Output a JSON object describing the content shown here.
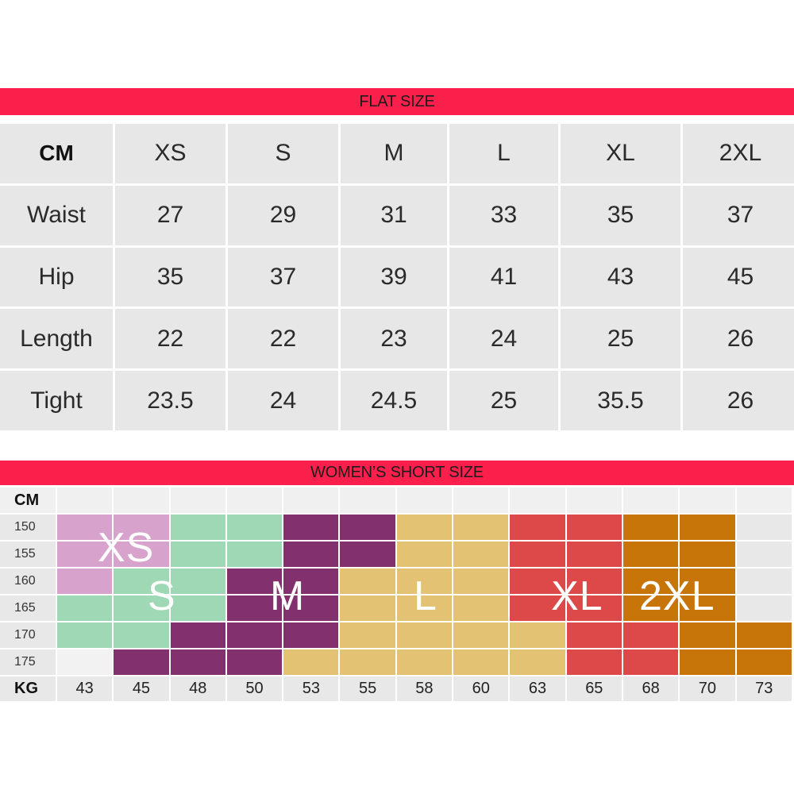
{
  "flat_size": {
    "title": "FLAT SIZE",
    "corner": "CM",
    "headers": [
      "XS",
      "S",
      "M",
      "L",
      "XL",
      "2XL"
    ],
    "rows": [
      {
        "label": "Waist",
        "values": [
          "27",
          "29",
          "31",
          "33",
          "35",
          "37"
        ]
      },
      {
        "label": "Hip",
        "values": [
          "35",
          "37",
          "39",
          "41",
          "43",
          "45"
        ]
      },
      {
        "label": "Length",
        "values": [
          "22",
          "22",
          "23",
          "24",
          "25",
          "26"
        ]
      },
      {
        "label": "Tight",
        "values": [
          "23.5",
          "24",
          "24.5",
          "25",
          "35.5",
          "26"
        ]
      }
    ]
  },
  "short_size": {
    "title": "WOMEN’S SHORT SIZE",
    "cm_label": "CM",
    "kg_label": "KG",
    "heights": [
      "150",
      "155",
      "160",
      "165",
      "170",
      "175"
    ],
    "weights": [
      "43",
      "45",
      "48",
      "50",
      "53",
      "55",
      "58",
      "60",
      "63",
      "65",
      "68",
      "70",
      "73"
    ],
    "size_labels": [
      "XS",
      "S",
      "M",
      "L",
      "XL",
      "2XL"
    ],
    "colors": {
      "banner": "#fb1f4c",
      "XS": "#d7a3cd",
      "S": "#9fd8b5",
      "M": "#83306f",
      "L": "#e3c274",
      "XL": "#dd4848",
      "2XL": "#c77408",
      "empty": "#e8e8e8"
    },
    "grid": [
      [
        "XS",
        "XS",
        "S",
        "S",
        "M",
        "M",
        "L",
        "L",
        "XL",
        "XL",
        "2XL",
        "2XL",
        ""
      ],
      [
        "XS",
        "XS",
        "S",
        "S",
        "M",
        "M",
        "L",
        "L",
        "XL",
        "XL",
        "2XL",
        "2XL",
        ""
      ],
      [
        "XS",
        "S",
        "S",
        "M",
        "M",
        "L",
        "L",
        "L",
        "XL",
        "XL",
        "2XL",
        "2XL",
        ""
      ],
      [
        "S",
        "S",
        "S",
        "M",
        "M",
        "L",
        "L",
        "L",
        "XL",
        "XL",
        "2XL",
        "2XL",
        ""
      ],
      [
        "S",
        "S",
        "M",
        "M",
        "M",
        "L",
        "L",
        "L",
        "L",
        "XL",
        "XL",
        "2XL",
        "2XL"
      ],
      [
        "",
        "M",
        "M",
        "M",
        "L",
        "L",
        "L",
        "L",
        "L",
        "XL",
        "XL",
        "2XL",
        "2XL"
      ]
    ]
  }
}
